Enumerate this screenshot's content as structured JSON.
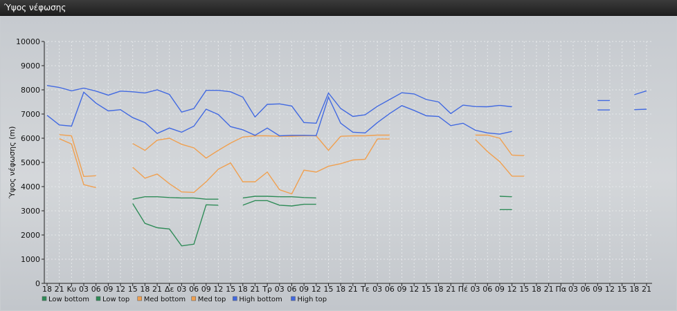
{
  "window": {
    "title": "Ύψος νέφωσης"
  },
  "chart_data": {
    "type": "line",
    "title": "",
    "ylabel": "Ύψος νέφωσης (m)",
    "xlabel": "",
    "ylim": [
      0,
      10000
    ],
    "yticks": [
      0,
      1000,
      2000,
      3000,
      4000,
      5000,
      6000,
      7000,
      8000,
      9000,
      10000
    ],
    "grid": true,
    "legend_position": "bottom-left",
    "categories": [
      "18",
      "21",
      "Κυ",
      "03",
      "06",
      "09",
      "12",
      "15",
      "18",
      "21",
      "Δε",
      "03",
      "06",
      "09",
      "12",
      "15",
      "18",
      "21",
      "Τρ",
      "03",
      "06",
      "09",
      "12",
      "15",
      "18",
      "21",
      "Τε",
      "03",
      "06",
      "09",
      "12",
      "15",
      "18",
      "21",
      "Πέ",
      "03",
      "06",
      "09",
      "12",
      "15",
      "18",
      "21",
      "Πα",
      "03",
      "06",
      "09",
      "12",
      "15",
      "18",
      "21"
    ],
    "series": [
      {
        "name": "Low bottom",
        "color": "#2e8b57",
        "values": [
          null,
          null,
          null,
          null,
          null,
          null,
          null,
          3300,
          2480,
          2300,
          2250,
          1550,
          1620,
          3250,
          3230,
          null,
          3230,
          3420,
          3420,
          3230,
          3200,
          3270,
          3270,
          null,
          null,
          null,
          null,
          null,
          null,
          null,
          null,
          null,
          null,
          null,
          null,
          null,
          null,
          3050,
          3050,
          null,
          null,
          null,
          null,
          null,
          null,
          null,
          null,
          null,
          null,
          null
        ]
      },
      {
        "name": "Low top",
        "color": "#2e8b57",
        "values": [
          null,
          null,
          null,
          null,
          null,
          null,
          null,
          3480,
          3580,
          3580,
          3550,
          3530,
          3530,
          3480,
          3480,
          null,
          3530,
          3600,
          3600,
          3580,
          3580,
          3550,
          3530,
          null,
          null,
          null,
          null,
          null,
          null,
          null,
          null,
          null,
          null,
          null,
          null,
          null,
          null,
          3600,
          3580,
          null,
          null,
          null,
          null,
          null,
          null,
          null,
          null,
          null,
          null,
          null
        ]
      },
      {
        "name": "Med bottom",
        "color": "#f0a050",
        "values": [
          null,
          5980,
          5760,
          4080,
          3960,
          null,
          null,
          4800,
          4350,
          4520,
          4120,
          3780,
          3760,
          4200,
          4720,
          4980,
          4200,
          4200,
          4600,
          3870,
          3700,
          4680,
          4600,
          4840,
          4950,
          5100,
          5130,
          5970,
          5970,
          null,
          null,
          null,
          null,
          null,
          null,
          5950,
          5450,
          5030,
          4430,
          4430,
          null,
          null,
          null,
          null,
          null,
          null,
          null,
          null,
          null,
          null
        ]
      },
      {
        "name": "Med top",
        "color": "#f0a050",
        "values": [
          null,
          6150,
          6100,
          4420,
          4450,
          null,
          null,
          5780,
          5500,
          5920,
          6000,
          5750,
          5600,
          5180,
          5500,
          5800,
          6050,
          6100,
          6100,
          6080,
          6080,
          6100,
          6100,
          5500,
          6080,
          6100,
          6100,
          6130,
          6130,
          null,
          null,
          null,
          null,
          null,
          null,
          6130,
          6130,
          6000,
          5300,
          5280,
          null,
          null,
          null,
          null,
          null,
          null,
          null,
          null,
          null,
          null
        ]
      },
      {
        "name": "High bottom",
        "color": "#4169e1",
        "values": [
          6950,
          6550,
          6500,
          7900,
          7450,
          7130,
          7180,
          6850,
          6650,
          6200,
          6420,
          6250,
          6500,
          7200,
          6980,
          6480,
          6350,
          6120,
          6420,
          6100,
          6120,
          6120,
          6110,
          7700,
          6620,
          6250,
          6220,
          6650,
          7020,
          7350,
          7150,
          6930,
          6900,
          6520,
          6620,
          6330,
          6220,
          6170,
          6280,
          null,
          null,
          null,
          null,
          null,
          null,
          7170,
          7170,
          null,
          7180,
          7200
        ]
      },
      {
        "name": "High top",
        "color": "#4169e1",
        "values": [
          8180,
          8100,
          7960,
          8070,
          7950,
          7780,
          7950,
          7920,
          7870,
          8000,
          7810,
          7080,
          7230,
          7980,
          7980,
          7920,
          7700,
          6880,
          7400,
          7420,
          7330,
          6650,
          6620,
          7870,
          7230,
          6900,
          6970,
          7320,
          7600,
          7880,
          7830,
          7600,
          7500,
          7020,
          7370,
          7310,
          7300,
          7360,
          7300,
          null,
          null,
          null,
          null,
          null,
          null,
          7560,
          7560,
          null,
          7800,
          7960
        ]
      }
    ]
  }
}
